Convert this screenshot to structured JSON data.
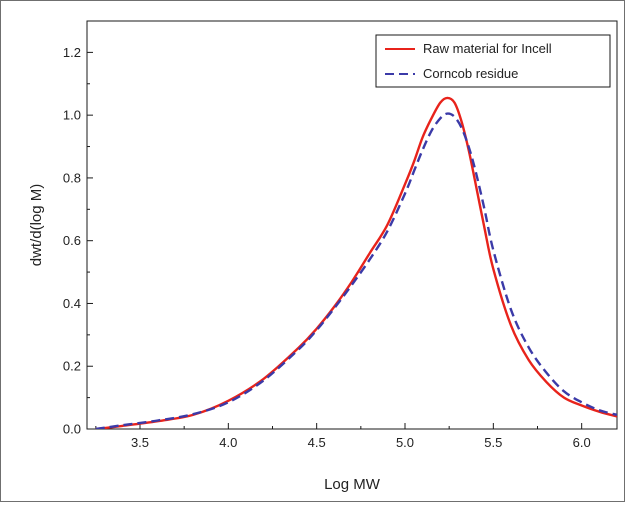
{
  "chart_data": {
    "type": "line",
    "title": "",
    "xlabel": "Log MW",
    "ylabel": "dwt/d(log M)",
    "xlim": [
      3.2,
      6.2
    ],
    "ylim": [
      0.0,
      1.3
    ],
    "x_ticks": [
      "3.5",
      "4.0",
      "4.5",
      "5.0",
      "5.5",
      "6.0"
    ],
    "y_ticks": [
      "0.0",
      "0.2",
      "0.4",
      "0.6",
      "0.8",
      "1.0",
      "1.2"
    ],
    "grid": false,
    "legend_position": "top-right",
    "series": [
      {
        "name": "Raw material for Incell",
        "color": "#e8231b",
        "dash": "solid",
        "x": [
          3.25,
          3.4,
          3.6,
          3.8,
          4.0,
          4.2,
          4.4,
          4.5,
          4.6,
          4.7,
          4.8,
          4.9,
          5.0,
          5.05,
          5.1,
          5.15,
          5.2,
          5.24,
          5.28,
          5.32,
          5.36,
          5.4,
          5.45,
          5.5,
          5.6,
          5.7,
          5.8,
          5.9,
          6.0,
          6.1,
          6.2
        ],
        "values": [
          0.0,
          0.01,
          0.025,
          0.045,
          0.09,
          0.16,
          0.26,
          0.32,
          0.39,
          0.47,
          0.56,
          0.65,
          0.78,
          0.85,
          0.93,
          0.99,
          1.04,
          1.055,
          1.04,
          0.98,
          0.89,
          0.78,
          0.64,
          0.51,
          0.33,
          0.22,
          0.15,
          0.1,
          0.075,
          0.055,
          0.04
        ]
      },
      {
        "name": "Corncob residue",
        "color": "#3b3aa8",
        "dash": "dashed",
        "x": [
          3.25,
          3.4,
          3.6,
          3.8,
          4.0,
          4.2,
          4.4,
          4.5,
          4.6,
          4.7,
          4.8,
          4.9,
          5.0,
          5.05,
          5.1,
          5.15,
          5.2,
          5.24,
          5.28,
          5.32,
          5.36,
          5.4,
          5.45,
          5.5,
          5.6,
          5.7,
          5.8,
          5.9,
          6.0,
          6.1,
          6.2
        ],
        "values": [
          0.0,
          0.012,
          0.027,
          0.047,
          0.085,
          0.155,
          0.255,
          0.315,
          0.385,
          0.46,
          0.54,
          0.63,
          0.75,
          0.82,
          0.89,
          0.95,
          0.99,
          1.005,
          0.995,
          0.96,
          0.9,
          0.82,
          0.7,
          0.57,
          0.38,
          0.26,
          0.18,
          0.12,
          0.085,
          0.06,
          0.045
        ]
      }
    ]
  }
}
